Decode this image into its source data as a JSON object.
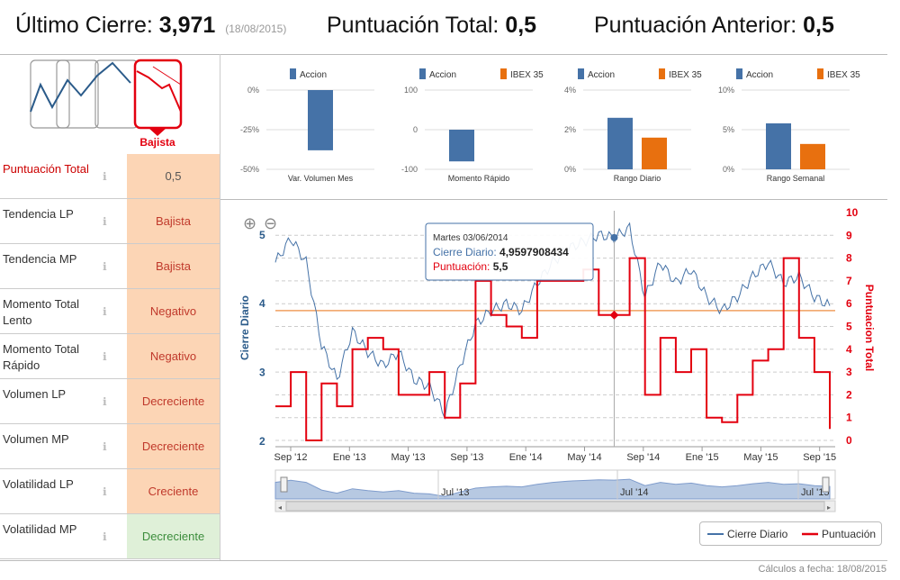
{
  "header": {
    "last_close_label": "Último Cierre:",
    "last_close_value": "3,971",
    "last_close_date": "(18/08/2015)",
    "total_score_label": "Puntuación Total:",
    "total_score_value": "0,5",
    "previous_score_label": "Puntuación Anterior:",
    "previous_score_value": "0,5"
  },
  "trend_widget": {
    "label": "Bajista",
    "color": "#e3000f"
  },
  "table": [
    {
      "label": "Puntuación Total",
      "value": "0,5",
      "style": "red"
    },
    {
      "label": "Tendencia LP",
      "value": "Bajista",
      "style": "orange"
    },
    {
      "label": "Tendencia MP",
      "value": "Bajista",
      "style": "orange"
    },
    {
      "label": "Momento Total Lento",
      "value": "Negativo",
      "style": "orange"
    },
    {
      "label": "Momento Total Rápido",
      "value": "Negativo",
      "style": "orange"
    },
    {
      "label": "Volumen LP",
      "value": "Decreciente",
      "style": "orange"
    },
    {
      "label": "Volumen MP",
      "value": "Decreciente",
      "style": "orange"
    },
    {
      "label": "Volatilidad LP",
      "value": "Creciente",
      "style": "orange"
    },
    {
      "label": "Volatilidad MP",
      "value": "Decreciente",
      "style": "green"
    }
  ],
  "chart_data": [
    {
      "type": "bar",
      "xlabel": "Var. Volumen Mes",
      "series": [
        {
          "name": "Accion",
          "values": [
            -38
          ],
          "color": "#4572a7"
        }
      ],
      "yticks": [
        "0%",
        "-25%",
        "-50%"
      ],
      "ylim": [
        -50,
        0
      ]
    },
    {
      "type": "bar",
      "xlabel": "Momento Rápido",
      "series": [
        {
          "name": "Accion",
          "values": [
            -80
          ],
          "color": "#4572a7"
        },
        {
          "name": "IBEX 35",
          "values": [
            0
          ],
          "color": "#e8700f"
        }
      ],
      "yticks": [
        "100",
        "0",
        "-100"
      ],
      "ylim": [
        -100,
        100
      ]
    },
    {
      "type": "bar",
      "xlabel": "Rango Diario",
      "series": [
        {
          "name": "Accion",
          "values": [
            2.6
          ],
          "color": "#4572a7"
        },
        {
          "name": "IBEX 35",
          "values": [
            1.6
          ],
          "color": "#e8700f"
        }
      ],
      "yticks": [
        "4%",
        "2%",
        "0%"
      ],
      "ylim": [
        0,
        4
      ]
    },
    {
      "type": "bar",
      "xlabel": "Rango Semanal",
      "series": [
        {
          "name": "Accion",
          "values": [
            5.8
          ],
          "color": "#4572a7"
        },
        {
          "name": "IBEX 35",
          "values": [
            3.2
          ],
          "color": "#e8700f"
        }
      ],
      "yticks": [
        "10%",
        "5%",
        "0%"
      ],
      "ylim": [
        0,
        10
      ]
    },
    {
      "type": "line",
      "ylabel_left": "Cierre Diario",
      "ylabel_right": "Puntuacion Total",
      "x_ticks": [
        "Sep '12",
        "Ene '13",
        "May '13",
        "Sep '13",
        "Ene '14",
        "May '14",
        "Sep '14",
        "Ene '15",
        "May '15",
        "Sep '15"
      ],
      "y_left_ticks": [
        "5",
        "4",
        "3",
        "2"
      ],
      "y_right_ticks": [
        "10",
        "9",
        "8",
        "7",
        "6",
        "5",
        "4",
        "3",
        "2",
        "1",
        "0"
      ],
      "navigator_ticks": [
        "Jul '13",
        "Jul '14",
        "Jul '15"
      ],
      "reference_line": 3.9,
      "tooltip": {
        "date": "Martes 03/06/2014",
        "close_label": "Cierre Diario:",
        "close_value": "4,9597908434",
        "score_label": "Puntuación:",
        "score_value": "5,5"
      },
      "series": [
        {
          "name": "Cierre Diario",
          "color": "#4572a7",
          "x": [
            "2012-08",
            "2012-09",
            "2012-10",
            "2012-11",
            "2012-12",
            "2013-01",
            "2013-02",
            "2013-03",
            "2013-04",
            "2013-05",
            "2013-06",
            "2013-07",
            "2013-08",
            "2013-09",
            "2013-10",
            "2013-11",
            "2013-12",
            "2014-01",
            "2014-02",
            "2014-03",
            "2014-04",
            "2014-05",
            "2014-06",
            "2014-07",
            "2014-08",
            "2014-09",
            "2014-10",
            "2014-11",
            "2014-12",
            "2015-01",
            "2015-02",
            "2015-03",
            "2015-04",
            "2015-05",
            "2015-06",
            "2015-07",
            "2015-08"
          ],
          "values": [
            4.6,
            4.95,
            4.6,
            3.4,
            2.9,
            3.6,
            3.3,
            3.1,
            3.3,
            2.9,
            2.8,
            2.4,
            3.1,
            3.7,
            3.9,
            4.0,
            3.9,
            4.3,
            4.6,
            4.8,
            4.9,
            5.0,
            4.96,
            5.1,
            4.1,
            4.6,
            4.3,
            4.5,
            4.1,
            3.9,
            4.1,
            4.4,
            4.6,
            4.3,
            4.4,
            4.1,
            3.97
          ]
        },
        {
          "name": "Puntuación",
          "color": "#e3000f",
          "x": [
            "2012-08",
            "2012-09",
            "2012-10",
            "2012-11",
            "2012-12",
            "2013-01",
            "2013-02",
            "2013-03",
            "2013-04",
            "2013-05",
            "2013-06",
            "2013-07",
            "2013-08",
            "2013-09",
            "2013-10",
            "2013-11",
            "2013-12",
            "2014-01",
            "2014-02",
            "2014-03",
            "2014-04",
            "2014-05",
            "2014-06",
            "2014-07",
            "2014-08",
            "2014-09",
            "2014-10",
            "2014-11",
            "2014-12",
            "2015-01",
            "2015-02",
            "2015-03",
            "2015-04",
            "2015-05",
            "2015-06",
            "2015-07",
            "2015-08"
          ],
          "values": [
            1.5,
            3,
            0,
            2.5,
            1.5,
            4,
            4.5,
            4,
            2,
            2,
            3,
            1,
            2.5,
            7,
            5.5,
            5,
            4.5,
            7,
            7,
            7,
            7.5,
            5.5,
            5.5,
            8,
            2,
            4.5,
            3,
            4,
            1,
            0.8,
            2,
            3.5,
            4,
            8,
            4.5,
            3,
            0.5
          ]
        }
      ]
    }
  ],
  "footer": {
    "text": "Cálculos a fecha: 18/08/2015"
  }
}
